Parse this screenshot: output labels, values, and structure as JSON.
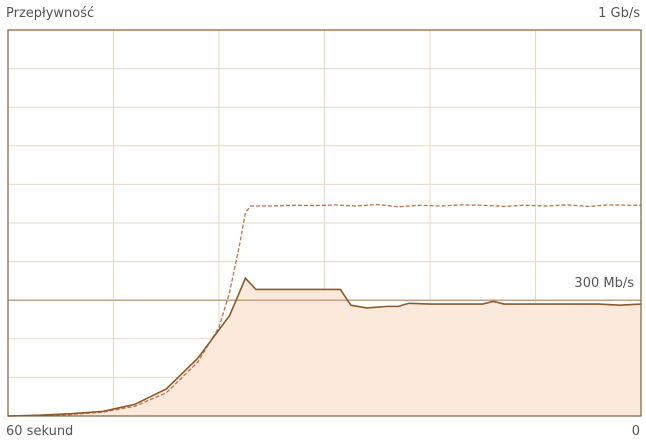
{
  "graph": {
    "title": "Przepływność",
    "max_label": "1 Gb/s",
    "time_start_label": "60 sekund",
    "time_end_label": "0",
    "reference_label": "300 Mb/s",
    "colors": {
      "border": "#8B5A2B",
      "grid": "#E7D8C6",
      "fill": "#FBEADB",
      "line": "#8B5A2B",
      "dashed": "#C0704A",
      "reference_line": "#C8A07E"
    }
  },
  "chart_data": {
    "type": "area",
    "x_unit": "seconds ago",
    "xlim": [
      60,
      0
    ],
    "ylim": [
      0,
      1000
    ],
    "reference_value": 300,
    "series": [
      {
        "style": "solid",
        "points": [
          [
            60,
            0
          ],
          [
            57,
            2
          ],
          [
            54,
            6
          ],
          [
            51,
            12
          ],
          [
            48,
            30
          ],
          [
            45,
            70
          ],
          [
            42,
            150
          ],
          [
            39,
            260
          ],
          [
            38.3,
            305
          ],
          [
            37.5,
            357
          ],
          [
            36.5,
            328
          ],
          [
            35.5,
            328
          ],
          [
            33,
            328
          ],
          [
            30.5,
            328
          ],
          [
            28.5,
            328
          ],
          [
            27.5,
            287
          ],
          [
            26,
            280
          ],
          [
            24,
            284
          ],
          [
            23,
            284
          ],
          [
            22,
            292
          ],
          [
            20,
            290
          ],
          [
            17,
            290
          ],
          [
            15,
            290
          ],
          [
            14,
            297
          ],
          [
            13,
            290
          ],
          [
            10,
            290
          ],
          [
            7,
            290
          ],
          [
            4,
            290
          ],
          [
            2,
            287
          ],
          [
            0,
            290
          ]
        ]
      },
      {
        "style": "dashed",
        "points": [
          [
            60,
            0
          ],
          [
            57,
            1
          ],
          [
            54,
            4
          ],
          [
            51,
            10
          ],
          [
            48,
            25
          ],
          [
            45,
            60
          ],
          [
            42,
            140
          ],
          [
            40,
            230
          ],
          [
            39,
            320
          ],
          [
            38,
            450
          ],
          [
            37.5,
            527
          ],
          [
            37,
            544
          ],
          [
            35,
            544
          ],
          [
            33,
            546
          ],
          [
            31,
            545
          ],
          [
            29,
            547
          ],
          [
            27,
            544
          ],
          [
            25,
            548
          ],
          [
            23,
            542
          ],
          [
            21,
            546
          ],
          [
            19,
            544
          ],
          [
            17,
            547
          ],
          [
            15,
            546
          ],
          [
            13,
            543
          ],
          [
            11,
            546
          ],
          [
            9,
            544
          ],
          [
            7,
            547
          ],
          [
            5,
            543
          ],
          [
            3,
            547
          ],
          [
            1,
            546
          ],
          [
            0,
            546
          ]
        ]
      }
    ]
  }
}
